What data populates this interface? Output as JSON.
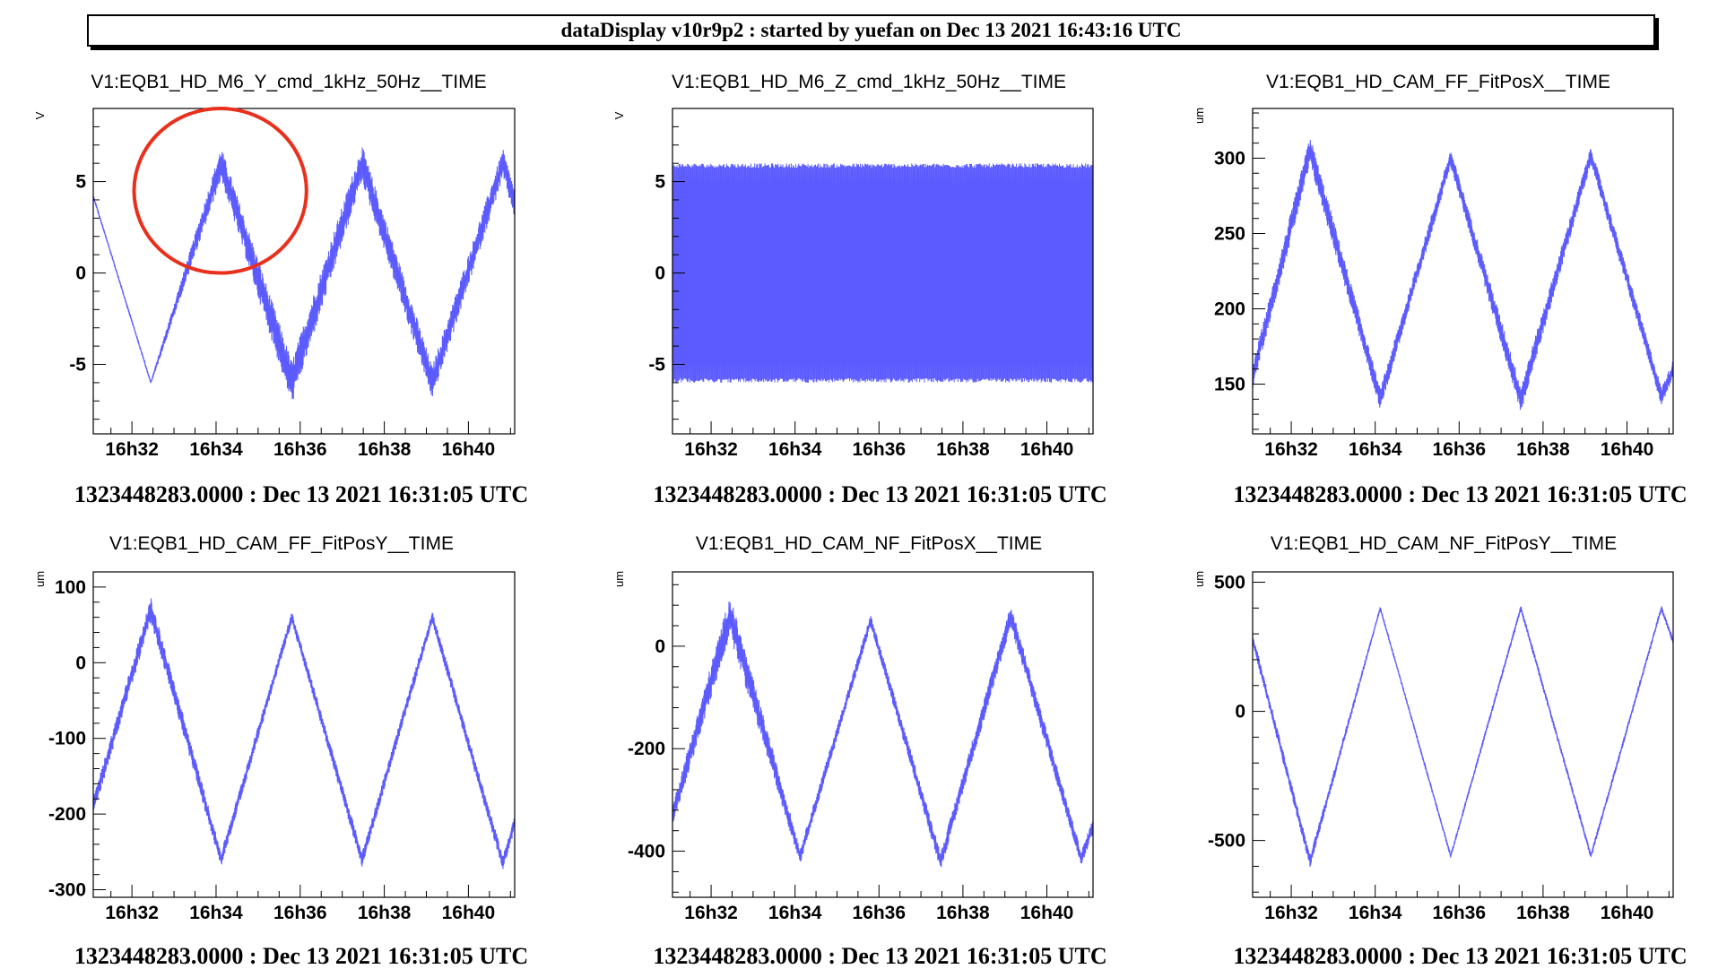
{
  "header": {
    "title": "dataDisplay v10r9p2 : started by yuefan on Dec 13 2021 16:43:16 UTC"
  },
  "colors": {
    "trace": "#5b5bff",
    "highlight_circle": "#e8301c"
  },
  "time_axis": {
    "start_minute": 31.08,
    "end_minute": 41.1,
    "ticks": [
      {
        "minute": 32,
        "label": "16h32"
      },
      {
        "minute": 34,
        "label": "16h34"
      },
      {
        "minute": 36,
        "label": "16h36"
      },
      {
        "minute": 38,
        "label": "16h38"
      },
      {
        "minute": 40,
        "label": "16h40"
      }
    ]
  },
  "chart_data": [
    {
      "type": "line",
      "title": "V1:EQB1_HD_M6_Y_cmd_1kHz_50Hz__TIME",
      "ylabel": "V",
      "ylim": [
        -8.8,
        9.0
      ],
      "y_ticks": [
        5,
        0,
        -5
      ],
      "y_tick_labels": [
        "5",
        "0",
        "-5"
      ],
      "footer": "1323448283.0000 : Dec 13 2021 16:31:05 UTC",
      "highlight": {
        "shape": "circle",
        "center_minute": 34.1,
        "center_value": 4.5,
        "radius_minutes": 2.05,
        "radius_value": 4.5
      },
      "series": [
        {
          "x": [
            31.08,
            32.45,
            34.12,
            35.8,
            37.47,
            39.14,
            40.82,
            41.1
          ],
          "y": [
            4.2,
            -6.0,
            6.0,
            -6.0,
            6.0,
            -6.0,
            6.0,
            3.8
          ],
          "noise": [
            0.1,
            0.1,
            0.9,
            1.2,
            1.0,
            0.9,
            0.8,
            0.8
          ]
        }
      ]
    },
    {
      "type": "line",
      "title": "V1:EQB1_HD_M6_Z_cmd_1kHz_50Hz__TIME",
      "ylabel": "V",
      "ylim": [
        -8.8,
        9.0
      ],
      "y_ticks": [
        5,
        0,
        -5
      ],
      "y_tick_labels": [
        "5",
        "0",
        "-5"
      ],
      "footer": "1323448283.0000 : Dec 13 2021 16:31:05 UTC",
      "series": [
        {
          "oscillation": true,
          "center": 0,
          "amplitude": 6.0,
          "x": [
            31.08,
            41.1
          ]
        }
      ]
    },
    {
      "type": "line",
      "title": "V1:EQB1_HD_CAM_FF_FitPosX__TIME",
      "ylabel": "um",
      "ylim": [
        117,
        333
      ],
      "y_ticks": [
        300,
        250,
        200,
        150
      ],
      "y_tick_labels": [
        "300",
        "250",
        "200",
        "150"
      ],
      "footer": "1323448283.0000 : Dec 13 2021 16:31:05 UTC",
      "series": [
        {
          "x": [
            31.08,
            32.45,
            34.12,
            35.8,
            37.47,
            39.14,
            40.82,
            41.1
          ],
          "y": [
            155,
            305,
            140,
            300,
            140,
            302,
            142,
            160
          ],
          "noise": [
            8,
            10,
            7,
            6,
            9,
            6,
            6,
            6
          ]
        }
      ]
    },
    {
      "type": "line",
      "title": "V1:EQB1_HD_CAM_FF_FitPosY__TIME",
      "ylabel": "um",
      "ylim": [
        -310,
        120
      ],
      "y_ticks": [
        100,
        0,
        -100,
        -200,
        -300
      ],
      "y_tick_labels": [
        "100",
        "0",
        "-100",
        "-200",
        "-300"
      ],
      "footer": "1323448283.0000 : Dec 13 2021 16:31:05 UTC",
      "series": [
        {
          "x": [
            31.08,
            32.45,
            34.12,
            35.8,
            37.47,
            39.14,
            40.82,
            41.1
          ],
          "y": [
            -190,
            70,
            -260,
            60,
            -260,
            60,
            -265,
            -210
          ],
          "noise": [
            12,
            16,
            10,
            8,
            10,
            8,
            10,
            10
          ]
        }
      ]
    },
    {
      "type": "line",
      "title": "V1:EQB1_HD_CAM_NF_FitPosX__TIME",
      "ylabel": "um",
      "ylim": [
        -490,
        145
      ],
      "y_ticks": [
        0,
        -200,
        -400
      ],
      "y_tick_labels": [
        "0",
        "-200",
        "-400"
      ],
      "footer": "1323448283.0000 : Dec 13 2021 16:31:05 UTC",
      "series": [
        {
          "x": [
            31.08,
            32.45,
            34.12,
            35.8,
            37.47,
            39.14,
            40.82,
            41.1
          ],
          "y": [
            -330,
            60,
            -410,
            50,
            -420,
            60,
            -415,
            -350
          ],
          "noise": [
            20,
            40,
            15,
            12,
            18,
            22,
            15,
            15
          ]
        }
      ]
    },
    {
      "type": "line",
      "title": "V1:EQB1_HD_CAM_NF_FitPosY__TIME",
      "ylabel": "um",
      "ylim": [
        -720,
        540
      ],
      "y_ticks": [
        500,
        0,
        -500
      ],
      "y_tick_labels": [
        "500",
        "0",
        "-500"
      ],
      "footer": "1323448283.0000 : Dec 13 2021 16:31:05 UTC",
      "series": [
        {
          "x": [
            31.08,
            32.45,
            34.12,
            35.8,
            37.47,
            39.14,
            40.82,
            41.1
          ],
          "y": [
            280,
            -580,
            400,
            -560,
            400,
            -560,
            400,
            270
          ],
          "noise": [
            25,
            25,
            8,
            10,
            12,
            12,
            12,
            12
          ]
        }
      ]
    }
  ]
}
